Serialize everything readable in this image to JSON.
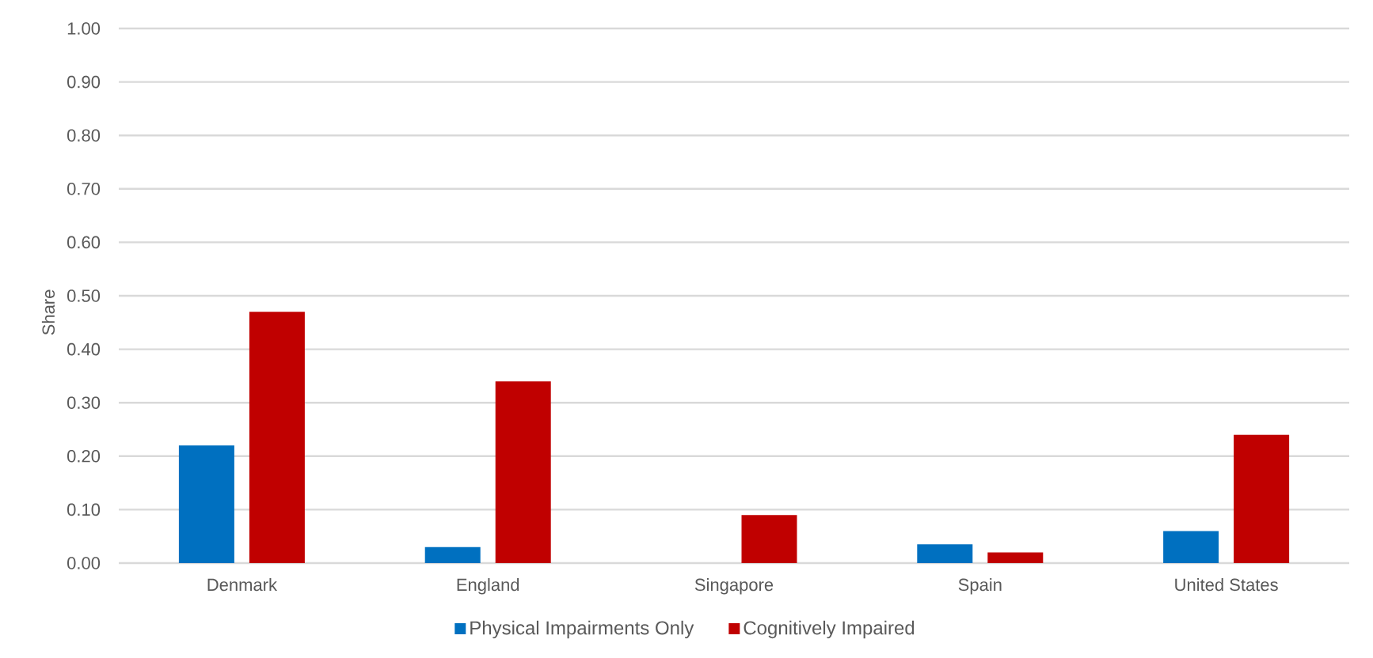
{
  "chart_data": {
    "type": "bar",
    "ylabel": "Share",
    "categories": [
      "Denmark",
      "England",
      "Singapore",
      "Spain",
      "United States"
    ],
    "series": [
      {
        "name": "Physical Impairments Only",
        "color": "#0070c0",
        "values": [
          0.22,
          0.03,
          null,
          0.035,
          0.06
        ]
      },
      {
        "name": "Cognitively Impaired",
        "color": "#c00000",
        "values": [
          0.47,
          0.34,
          0.09,
          0.02,
          0.24
        ]
      }
    ],
    "ylim": [
      0,
      1
    ],
    "yticks": [
      {
        "value": 0,
        "label": "0.00"
      },
      {
        "value": 0.1,
        "label": "0.10"
      },
      {
        "value": 0.2,
        "label": "0.20"
      },
      {
        "value": 0.3,
        "label": "0.30"
      },
      {
        "value": 0.4,
        "label": "0.40"
      },
      {
        "value": 0.5,
        "label": "0.50"
      },
      {
        "value": 0.6,
        "label": "0.60"
      },
      {
        "value": 0.7,
        "label": "0.70"
      },
      {
        "value": 0.8,
        "label": "0.80"
      },
      {
        "value": 0.9,
        "label": "0.90"
      },
      {
        "value": 1,
        "label": "1.00"
      }
    ],
    "grid": "y",
    "legend": "bottom"
  }
}
